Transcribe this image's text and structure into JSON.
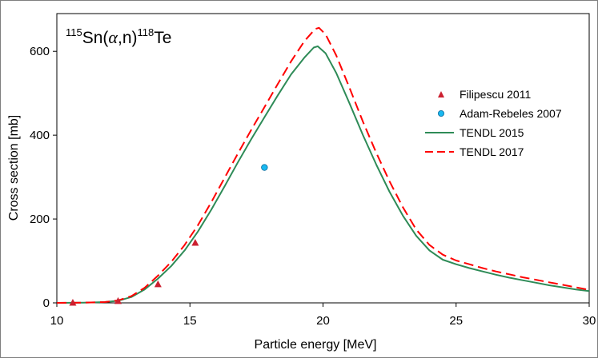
{
  "chart_data": {
    "type": "scatter",
    "title": {
      "mass_target": "115",
      "target": "Sn(",
      "projectile": "α",
      "ejectile": ",n)",
      "mass_product": "118",
      "product": "Te"
    },
    "xlabel": "Particle energy [MeV]",
    "ylabel": "Cross section [mb]",
    "xlim": [
      10,
      30
    ],
    "ylim": [
      0,
      690
    ],
    "xticks": [
      10,
      15,
      20,
      25,
      30
    ],
    "yticks": [
      0,
      200,
      400,
      600
    ],
    "legend_position": "right",
    "series": [
      {
        "name": "Filipescu 2011",
        "kind": "markers",
        "marker": "triangle",
        "color": "#cc2030",
        "points": [
          [
            10.6,
            0
          ],
          [
            12.3,
            4
          ],
          [
            13.8,
            44
          ],
          [
            15.2,
            143
          ]
        ]
      },
      {
        "name": "Adam-Rebeles 2007",
        "kind": "markers",
        "marker": "circle",
        "color": "#19b8f0",
        "points": [
          [
            17.8,
            323
          ]
        ]
      },
      {
        "name": "TENDL 2015",
        "kind": "line",
        "dash": "solid",
        "color": "#2e8b57",
        "points": [
          [
            10,
            0
          ],
          [
            11,
            0.5
          ],
          [
            11.8,
            2
          ],
          [
            12.3,
            5
          ],
          [
            12.8,
            14
          ],
          [
            13.3,
            32
          ],
          [
            13.8,
            58
          ],
          [
            14.3,
            88
          ],
          [
            14.8,
            125
          ],
          [
            15.3,
            170
          ],
          [
            15.8,
            222
          ],
          [
            16.3,
            278
          ],
          [
            16.8,
            335
          ],
          [
            17.3,
            390
          ],
          [
            17.8,
            443
          ],
          [
            18.3,
            495
          ],
          [
            18.8,
            545
          ],
          [
            19.3,
            585
          ],
          [
            19.65,
            609
          ],
          [
            19.8,
            612
          ],
          [
            20.1,
            595
          ],
          [
            20.5,
            548
          ],
          [
            21.0,
            475
          ],
          [
            21.5,
            400
          ],
          [
            22.0,
            330
          ],
          [
            22.5,
            265
          ],
          [
            23.0,
            208
          ],
          [
            23.5,
            160
          ],
          [
            24.0,
            125
          ],
          [
            24.5,
            103
          ],
          [
            25.0,
            92
          ],
          [
            25.5,
            83
          ],
          [
            26.0,
            75
          ],
          [
            26.5,
            67
          ],
          [
            27.0,
            60
          ],
          [
            27.5,
            54
          ],
          [
            28.0,
            48
          ],
          [
            28.5,
            42
          ],
          [
            29.0,
            37
          ],
          [
            29.5,
            32
          ],
          [
            30.0,
            28
          ]
        ]
      },
      {
        "name": "TENDL 2017",
        "kind": "line",
        "dash": "dashed",
        "color": "#ff0000",
        "points": [
          [
            10,
            0
          ],
          [
            11,
            0.5
          ],
          [
            11.8,
            2
          ],
          [
            12.3,
            6
          ],
          [
            12.8,
            16
          ],
          [
            13.3,
            36
          ],
          [
            13.8,
            65
          ],
          [
            14.3,
            98
          ],
          [
            14.8,
            138
          ],
          [
            15.3,
            185
          ],
          [
            15.8,
            240
          ],
          [
            16.3,
            298
          ],
          [
            16.8,
            356
          ],
          [
            17.3,
            412
          ],
          [
            17.8,
            467
          ],
          [
            18.3,
            522
          ],
          [
            18.8,
            576
          ],
          [
            19.3,
            624
          ],
          [
            19.7,
            653
          ],
          [
            19.85,
            656
          ],
          [
            20.1,
            640
          ],
          [
            20.5,
            590
          ],
          [
            21.0,
            512
          ],
          [
            21.5,
            432
          ],
          [
            22.0,
            358
          ],
          [
            22.5,
            290
          ],
          [
            23.0,
            228
          ],
          [
            23.5,
            175
          ],
          [
            24.0,
            138
          ],
          [
            24.5,
            115
          ],
          [
            25.0,
            101
          ],
          [
            25.5,
            92
          ],
          [
            26.0,
            83
          ],
          [
            26.5,
            75
          ],
          [
            27.0,
            68
          ],
          [
            27.5,
            61
          ],
          [
            28.0,
            55
          ],
          [
            28.5,
            49
          ],
          [
            29.0,
            43
          ],
          [
            29.5,
            37
          ],
          [
            30.0,
            31
          ]
        ]
      }
    ]
  }
}
